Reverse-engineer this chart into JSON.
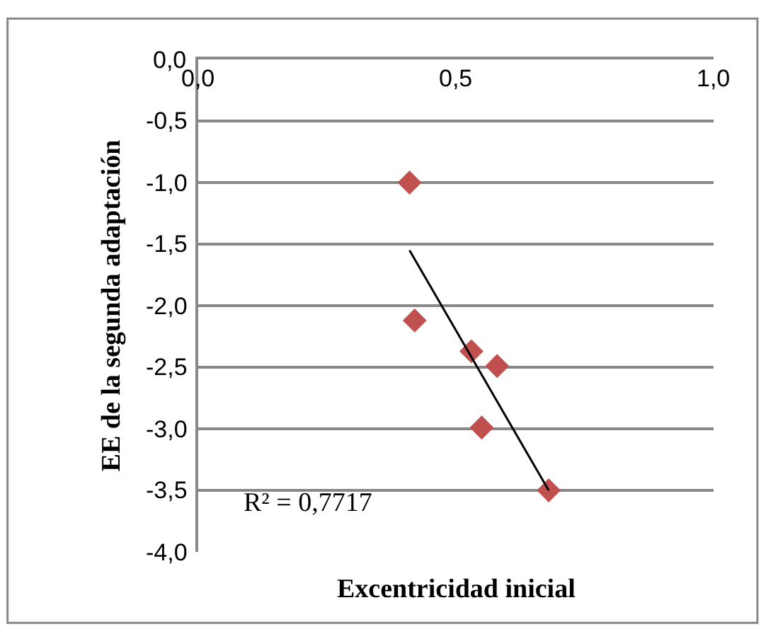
{
  "chart_data": {
    "type": "scatter",
    "xlabel": "Excentricidad inicial",
    "ylabel": "EE de la segunda adaptación",
    "xlim": [
      0,
      1
    ],
    "xticks": [
      {
        "value": 0,
        "label": "0,0"
      },
      {
        "value": 0.5,
        "label": "0,5"
      },
      {
        "value": 1,
        "label": "1,0"
      }
    ],
    "ylim": [
      -4,
      0
    ],
    "yticks": [
      {
        "value": 0,
        "label": "0,0"
      },
      {
        "value": -0.5,
        "label": "-0,5"
      },
      {
        "value": -1,
        "label": "-1,0"
      },
      {
        "value": -1.5,
        "label": "-1,5"
      },
      {
        "value": -2,
        "label": "-2,0"
      },
      {
        "value": -2.5,
        "label": "-2,5"
      },
      {
        "value": -3,
        "label": "-3,0"
      },
      {
        "value": -3.5,
        "label": "-3,5"
      },
      {
        "value": -4,
        "label": "-4,0"
      }
    ],
    "grid": "y",
    "marker": "diamond",
    "series": [
      {
        "color": "#c0504d",
        "x": [
          0.41,
          0.42,
          0.53,
          0.58,
          0.55,
          0.68
        ],
        "values": [
          -1.0,
          -2.12,
          -2.37,
          -2.49,
          -2.99,
          -3.5
        ]
      },
      {
        "type": "line",
        "color": "#000000",
        "x": [
          0.41,
          0.68
        ],
        "values": [
          -1.55,
          -3.5
        ],
        "marker": "none",
        "line_style": "solid"
      }
    ],
    "annotations": [
      "R² = 0,7717"
    ]
  }
}
